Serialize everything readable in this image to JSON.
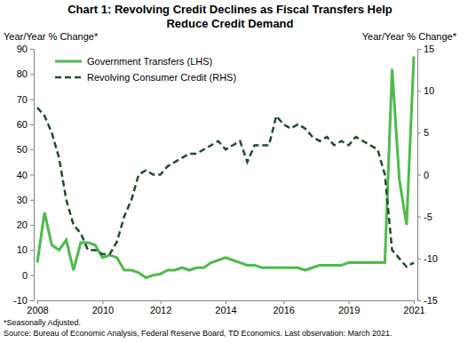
{
  "chart_data": {
    "type": "line",
    "title": [
      "Chart 1: Revolving Credit Declines as Fiscal Transfers Help",
      "Reduce Credit Demand"
    ],
    "ylabel": "Year/Year % Change*",
    "y2label": "Year/Year % Change*",
    "notes": [
      "*Seasonally Adjusted.",
      "Source: Bureau of Economic Analysis, Federal Reserve Board, TD Economics.  Last observation: March 2021."
    ],
    "categories": [
      "2008",
      null,
      null,
      null,
      null,
      null,
      null,
      null,
      null,
      "2010",
      null,
      null,
      null,
      null,
      null,
      null,
      null,
      "2012",
      null,
      null,
      null,
      null,
      null,
      null,
      null,
      null,
      "2014",
      null,
      null,
      null,
      null,
      null,
      null,
      null,
      "2016",
      null,
      null,
      null,
      null,
      null,
      null,
      null,
      null,
      "2019",
      null,
      null,
      null,
      null,
      null,
      null,
      null,
      null,
      "2021"
    ],
    "series": [
      {
        "name": "Government Transfers (LHS)",
        "color": "#4dbb4a",
        "line_style": "solid",
        "values": [
          5,
          25,
          12,
          10,
          14,
          2,
          13,
          13,
          12,
          7,
          8,
          7,
          2,
          2,
          1,
          -1,
          0,
          0.5,
          2,
          2,
          3,
          2,
          3,
          3,
          5,
          6,
          7,
          6,
          5,
          4,
          4,
          3,
          3,
          3,
          3,
          3,
          3,
          2,
          3,
          4,
          4,
          4,
          4,
          5,
          5,
          5,
          5,
          5,
          5,
          82,
          38,
          20,
          87
        ]
      },
      {
        "name": "Revolving Consumer Credit (RHS)",
        "color": "#1f4d2c",
        "line_style": "dashed",
        "axis": "y2",
        "values": [
          8,
          7,
          5,
          2,
          -3,
          -6,
          -7,
          -9,
          -9,
          -9.5,
          -9.5,
          -8,
          -5,
          -3,
          0,
          0.5,
          0,
          0,
          1,
          1.5,
          2,
          2.5,
          2.5,
          3,
          3.5,
          4,
          3,
          3.5,
          4,
          1.5,
          3.5,
          3.5,
          3.5,
          7,
          6,
          5.5,
          6,
          5.5,
          4.5,
          4,
          4.5,
          3.5,
          4,
          3.5,
          4.5,
          4,
          3.5,
          3,
          0,
          -9,
          -10,
          -11,
          -10.5
        ]
      }
    ],
    "ylim": [
      -10,
      90
    ],
    "yticks": [
      -10,
      0,
      10,
      20,
      30,
      40,
      50,
      60,
      70,
      80,
      90
    ],
    "y2lim": [
      -15,
      15
    ],
    "y2ticks": [
      -15,
      -10,
      -5,
      0,
      5,
      10,
      15
    ],
    "legend": "upper left",
    "grid": false
  }
}
